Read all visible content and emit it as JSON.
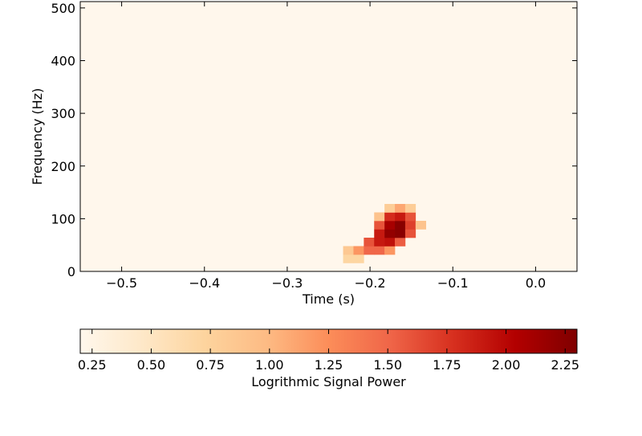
{
  "chart_data": [
    {
      "type": "heatmap",
      "title": "",
      "xlabel": "Time (s)",
      "ylabel": "Frequency (Hz)",
      "xlim": [
        -0.55,
        0.05
      ],
      "ylim": [
        0,
        512
      ],
      "x_ticks": [
        -0.5,
        -0.4,
        -0.3,
        -0.2,
        -0.1,
        0.0
      ],
      "x_tick_labels": [
        "−0.5",
        "−0.4",
        "−0.3",
        "−0.2",
        "−0.1",
        "0.0"
      ],
      "y_ticks": [
        0,
        100,
        200,
        300,
        400,
        500
      ],
      "y_tick_labels": [
        "0",
        "100",
        "200",
        "300",
        "400",
        "500"
      ],
      "colormap": "OrRd",
      "background_value": 0.2,
      "cell_width_s": 0.0125,
      "cell_height_hz": 16,
      "cells": [
        {
          "t": -0.2325,
          "f": 16,
          "v": 0.7
        },
        {
          "t": -0.22,
          "f": 16,
          "v": 0.7
        },
        {
          "t": -0.2325,
          "f": 32,
          "v": 0.85
        },
        {
          "t": -0.22,
          "f": 32,
          "v": 1.2
        },
        {
          "t": -0.2075,
          "f": 32,
          "v": 1.5
        },
        {
          "t": -0.195,
          "f": 32,
          "v": 1.5
        },
        {
          "t": -0.1825,
          "f": 32,
          "v": 1.2
        },
        {
          "t": -0.2075,
          "f": 48,
          "v": 1.6
        },
        {
          "t": -0.195,
          "f": 48,
          "v": 1.9
        },
        {
          "t": -0.1825,
          "f": 48,
          "v": 1.95
        },
        {
          "t": -0.17,
          "f": 48,
          "v": 1.55
        },
        {
          "t": -0.195,
          "f": 64,
          "v": 1.9
        },
        {
          "t": -0.1825,
          "f": 64,
          "v": 2.2
        },
        {
          "t": -0.17,
          "f": 64,
          "v": 2.25
        },
        {
          "t": -0.1575,
          "f": 64,
          "v": 1.6
        },
        {
          "t": -0.195,
          "f": 80,
          "v": 1.6
        },
        {
          "t": -0.1825,
          "f": 80,
          "v": 2.1
        },
        {
          "t": -0.17,
          "f": 80,
          "v": 2.25
        },
        {
          "t": -0.1575,
          "f": 80,
          "v": 1.7
        },
        {
          "t": -0.145,
          "f": 80,
          "v": 0.9
        },
        {
          "t": -0.195,
          "f": 96,
          "v": 0.9
        },
        {
          "t": -0.1825,
          "f": 96,
          "v": 1.8
        },
        {
          "t": -0.17,
          "f": 96,
          "v": 1.9
        },
        {
          "t": -0.1575,
          "f": 96,
          "v": 1.6
        },
        {
          "t": -0.1825,
          "f": 112,
          "v": 0.8
        },
        {
          "t": -0.17,
          "f": 112,
          "v": 1.1
        },
        {
          "t": -0.1575,
          "f": 112,
          "v": 0.8
        }
      ]
    },
    {
      "type": "colorbar",
      "label": "Logrithmic Signal Power",
      "range": [
        0.2,
        2.3
      ],
      "ticks": [
        0.25,
        0.5,
        0.75,
        1.0,
        1.25,
        1.5,
        1.75,
        2.0,
        2.25
      ],
      "tick_labels": [
        "0.25",
        "0.50",
        "0.75",
        "1.00",
        "1.25",
        "1.50",
        "1.75",
        "2.00",
        "2.25"
      ],
      "colormap": "OrRd"
    }
  ]
}
